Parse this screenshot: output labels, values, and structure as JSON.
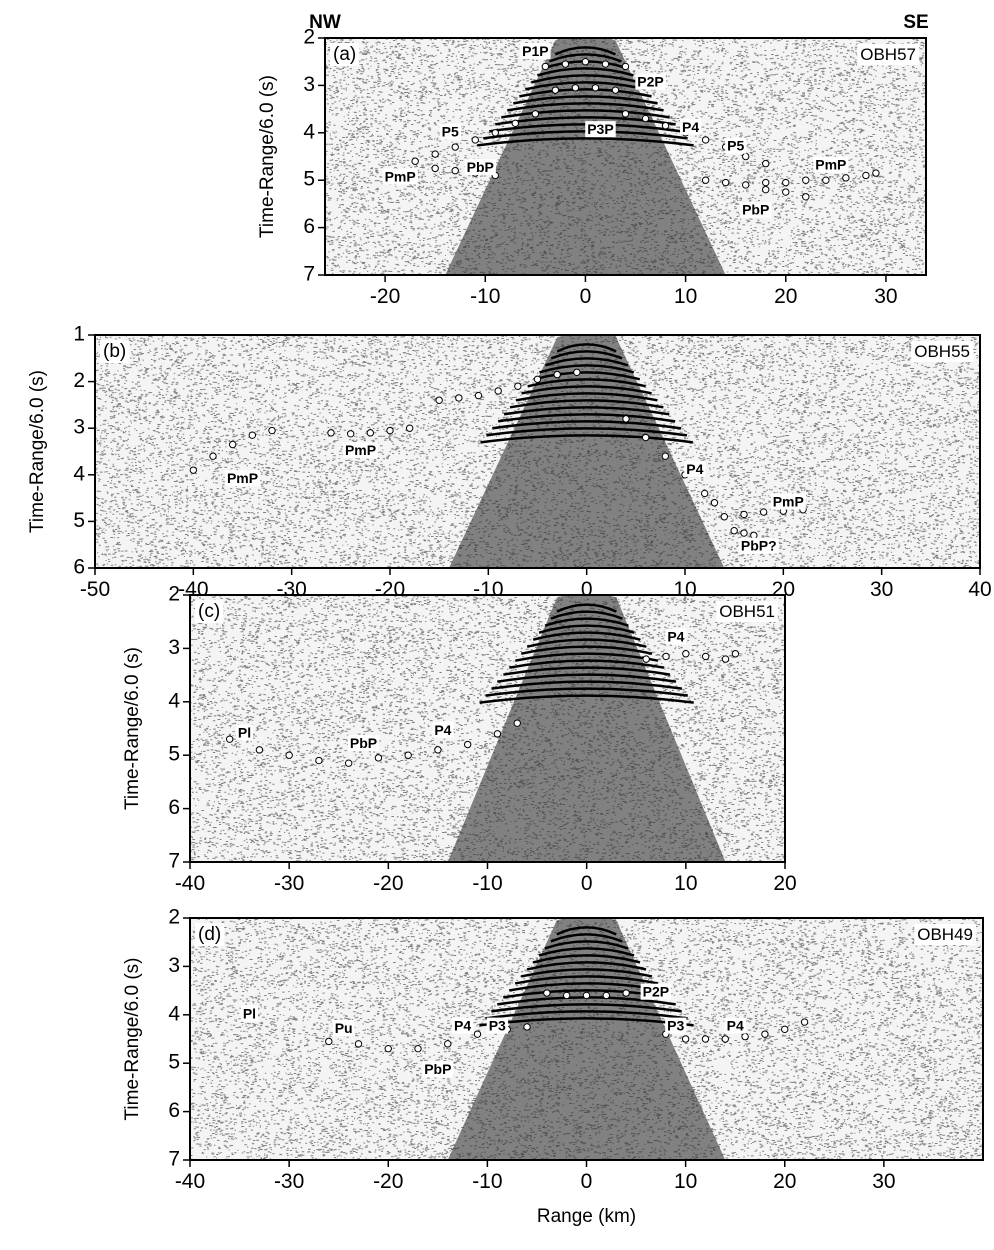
{
  "chart_data": [
    {
      "type": "seismic",
      "panel_label": "(a)",
      "station": "OBH57",
      "left_label": "NW",
      "right_label": "SE",
      "ylabel": "Time-Range/6.0 (s)",
      "xlim": [
        -26,
        34
      ],
      "ylim": [
        7,
        2
      ],
      "xticks": [
        -20,
        -10,
        0,
        10,
        20,
        30
      ],
      "yticks": [
        2,
        3,
        4,
        5,
        6,
        7
      ],
      "picks": [
        {
          "x": [
            -17,
            -15,
            -13,
            -11,
            -9,
            -7,
            -5
          ],
          "y": [
            4.6,
            4.45,
            4.3,
            4.15,
            4.0,
            3.8,
            3.6
          ]
        },
        {
          "x": [
            -15,
            -13,
            -11,
            -9
          ],
          "y": [
            4.75,
            4.8,
            4.85,
            4.9
          ]
        },
        {
          "x": [
            -4,
            -2,
            0,
            2,
            4
          ],
          "y": [
            2.6,
            2.55,
            2.5,
            2.55,
            2.6
          ]
        },
        {
          "x": [
            -3,
            -1,
            1,
            3
          ],
          "y": [
            3.1,
            3.05,
            3.05,
            3.1
          ]
        },
        {
          "x": [
            4,
            6,
            8,
            10,
            12,
            14,
            16,
            18
          ],
          "y": [
            3.6,
            3.7,
            3.85,
            4.0,
            4.15,
            4.3,
            4.5,
            4.65
          ]
        },
        {
          "x": [
            12,
            14,
            16,
            18,
            20,
            22
          ],
          "y": [
            5.0,
            5.05,
            5.1,
            5.2,
            5.25,
            5.35
          ]
        },
        {
          "x": [
            18,
            20,
            22,
            24,
            26,
            28,
            29
          ],
          "y": [
            5.05,
            5.05,
            5.0,
            5.0,
            4.95,
            4.9,
            4.85
          ]
        }
      ],
      "annotations": [
        {
          "text": "P1P",
          "x": -5,
          "y": 2.3
        },
        {
          "text": "P2P",
          "x": 6.5,
          "y": 2.95
        },
        {
          "text": "P3P",
          "x": 1.5,
          "y": 3.95
        },
        {
          "text": "P5",
          "x": -13.5,
          "y": 4.0
        },
        {
          "text": "P4",
          "x": 10.5,
          "y": 3.9
        },
        {
          "text": "P5",
          "x": 15,
          "y": 4.3
        },
        {
          "text": "PmP",
          "x": -18.5,
          "y": 4.95
        },
        {
          "text": "PbP",
          "x": -10.5,
          "y": 4.75
        },
        {
          "text": "PmP",
          "x": 24.5,
          "y": 4.7
        },
        {
          "text": "PbP",
          "x": 17,
          "y": 5.65
        }
      ]
    },
    {
      "type": "seismic",
      "panel_label": "(b)",
      "station": "OBH55",
      "ylabel": "Time-Range/6.0 (s)",
      "xlim": [
        -50,
        40
      ],
      "ylim": [
        6,
        1
      ],
      "xticks": [
        -50,
        -40,
        -30,
        -20,
        -10,
        0,
        10,
        20,
        30,
        40
      ],
      "yticks": [
        1,
        2,
        3,
        4,
        5,
        6
      ],
      "picks": [
        {
          "x": [
            -40,
            -38,
            -36,
            -34,
            -32
          ],
          "y": [
            3.9,
            3.6,
            3.35,
            3.15,
            3.05
          ]
        },
        {
          "x": [
            -26,
            -24,
            -22,
            -20,
            -18
          ],
          "y": [
            3.1,
            3.12,
            3.1,
            3.05,
            3.0
          ]
        },
        {
          "x": [
            -15,
            -13,
            -11,
            -9,
            -7,
            -5,
            -3,
            -1
          ],
          "y": [
            2.4,
            2.35,
            2.3,
            2.2,
            2.1,
            1.95,
            1.85,
            1.8
          ]
        },
        {
          "x": [
            4,
            6,
            8,
            10,
            12,
            13
          ],
          "y": [
            2.8,
            3.2,
            3.6,
            4.0,
            4.4,
            4.6
          ]
        },
        {
          "x": [
            14,
            16,
            18,
            20,
            22
          ],
          "y": [
            4.9,
            4.85,
            4.8,
            4.78,
            4.75
          ]
        },
        {
          "x": [
            15,
            16,
            17
          ],
          "y": [
            5.2,
            5.25,
            5.3
          ]
        }
      ],
      "annotations": [
        {
          "text": "PmP",
          "x": -35,
          "y": 4.1
        },
        {
          "text": "PmP",
          "x": -23,
          "y": 3.5
        },
        {
          "text": "P4",
          "x": 11,
          "y": 3.9
        },
        {
          "text": "PmP",
          "x": 20.5,
          "y": 4.6
        },
        {
          "text": "PbP?",
          "x": 17.5,
          "y": 5.55
        }
      ]
    },
    {
      "type": "seismic",
      "panel_label": "(c)",
      "station": "OBH51",
      "ylabel": "Time-Range/6.0 (s)",
      "xlim": [
        -40,
        20
      ],
      "ylim": [
        7,
        2
      ],
      "xticks": [
        -40,
        -30,
        -20,
        -10,
        0,
        10,
        20
      ],
      "yticks": [
        2,
        3,
        4,
        5,
        6,
        7
      ],
      "picks": [
        {
          "x": [
            -36,
            -33,
            -30,
            -27,
            -24,
            -21,
            -18,
            -15,
            -12,
            -9,
            -7
          ],
          "y": [
            4.7,
            4.9,
            5.0,
            5.1,
            5.15,
            5.05,
            5.0,
            4.9,
            4.8,
            4.6,
            4.4
          ]
        },
        {
          "x": [
            6,
            8,
            10,
            12,
            14,
            15
          ],
          "y": [
            3.2,
            3.15,
            3.1,
            3.15,
            3.2,
            3.1
          ]
        }
      ],
      "annotations": [
        {
          "text": "Pl",
          "x": -34.5,
          "y": 4.6
        },
        {
          "text": "PbP",
          "x": -22.5,
          "y": 4.8
        },
        {
          "text": "P4",
          "x": -14.5,
          "y": 4.55
        },
        {
          "text": "P4",
          "x": 9,
          "y": 2.8
        }
      ]
    },
    {
      "type": "seismic",
      "panel_label": "(d)",
      "station": "OBH49",
      "ylabel": "Time-Range/6.0 (s)",
      "xlabel": "Range (km)",
      "xlim": [
        -40,
        40
      ],
      "ylim": [
        7,
        2
      ],
      "xticks": [
        -40,
        -30,
        -20,
        -10,
        0,
        10,
        20,
        30
      ],
      "yticks": [
        2,
        3,
        4,
        5,
        6,
        7
      ],
      "picks": [
        {
          "x": [
            -26,
            -23,
            -20,
            -17,
            -14,
            -11,
            -8,
            -6
          ],
          "y": [
            4.55,
            4.6,
            4.7,
            4.7,
            4.6,
            4.4,
            4.3,
            4.25
          ]
        },
        {
          "x": [
            -4,
            -2,
            0,
            2,
            4
          ],
          "y": [
            3.55,
            3.6,
            3.6,
            3.6,
            3.55
          ]
        },
        {
          "x": [
            8,
            10,
            12,
            14,
            16,
            18,
            20,
            22
          ],
          "y": [
            4.4,
            4.5,
            4.5,
            4.5,
            4.45,
            4.4,
            4.3,
            4.15
          ]
        }
      ],
      "annotations": [
        {
          "text": "Pl",
          "x": -34,
          "y": 4.0
        },
        {
          "text": "Pu",
          "x": -24.5,
          "y": 4.3
        },
        {
          "text": "P4",
          "x": -12.5,
          "y": 4.25
        },
        {
          "text": "P3",
          "x": -9,
          "y": 4.25
        },
        {
          "text": "P2P",
          "x": 7,
          "y": 3.55
        },
        {
          "text": "P3",
          "x": 9,
          "y": 4.25
        },
        {
          "text": "P4",
          "x": 15,
          "y": 4.25
        },
        {
          "text": "PbP",
          "x": -15,
          "y": 5.15
        }
      ]
    }
  ]
}
